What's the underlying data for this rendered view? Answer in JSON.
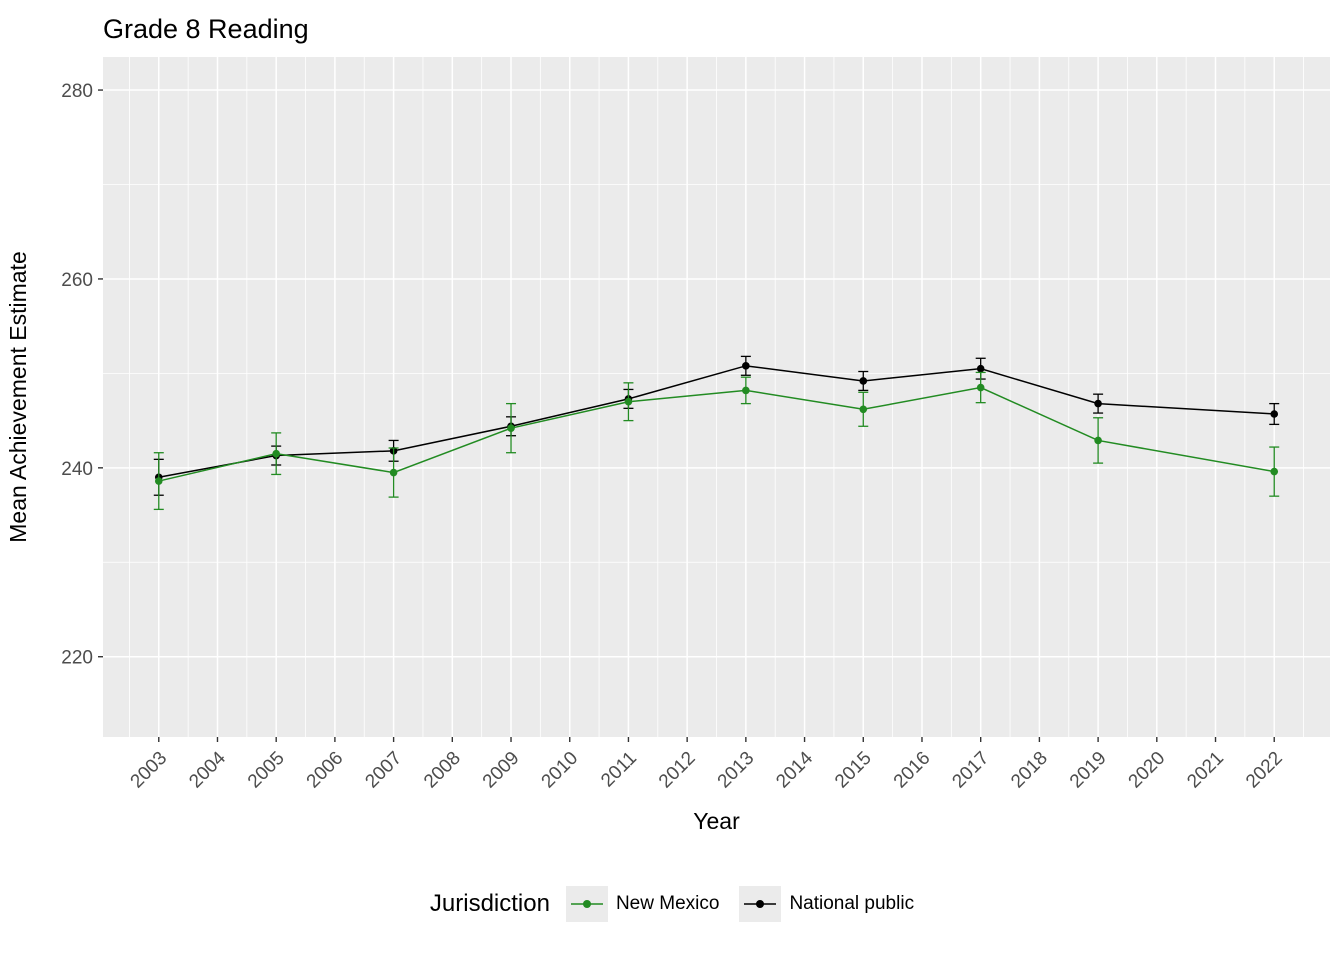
{
  "title": "Grade 8 Reading",
  "chart_data": {
    "type": "line",
    "title": "Grade 8 Reading",
    "xlabel": "Year",
    "ylabel": "Mean Achievement Estimate",
    "legend_title": "Jurisdiction",
    "legend_position": "bottom",
    "grid": true,
    "panel_bg": "#EBEBEB",
    "grid_color": "#FFFFFF",
    "tick_color": "#333333",
    "tick_label_color": "#4D4D4D",
    "xlim": [
      2002.05,
      2022.95
    ],
    "ylim": [
      211.5,
      283.5
    ],
    "x_ticks": [
      2003,
      2004,
      2005,
      2006,
      2007,
      2008,
      2009,
      2010,
      2011,
      2012,
      2013,
      2014,
      2015,
      2016,
      2017,
      2018,
      2019,
      2020,
      2021,
      2022
    ],
    "y_ticks": [
      220,
      240,
      260,
      280
    ],
    "y_minor": [
      230,
      250,
      270
    ],
    "x": [
      2003,
      2005,
      2007,
      2009,
      2011,
      2013,
      2015,
      2017,
      2019,
      2022
    ],
    "series": [
      {
        "name": "New Mexico",
        "color": "#228B22",
        "values": [
          238.6,
          241.5,
          239.5,
          244.2,
          247.0,
          248.2,
          246.2,
          248.5,
          242.9,
          239.6
        ],
        "error": [
          3.0,
          2.2,
          2.6,
          2.6,
          2.0,
          1.4,
          1.8,
          1.6,
          2.4,
          2.6
        ]
      },
      {
        "name": "National public",
        "color": "#000000",
        "values": [
          239.0,
          241.3,
          241.8,
          244.4,
          247.3,
          250.8,
          249.2,
          250.5,
          246.8,
          245.7
        ],
        "error": [
          1.9,
          1.0,
          1.1,
          1.0,
          1.0,
          1.0,
          1.0,
          1.1,
          1.0,
          1.1
        ]
      }
    ]
  }
}
